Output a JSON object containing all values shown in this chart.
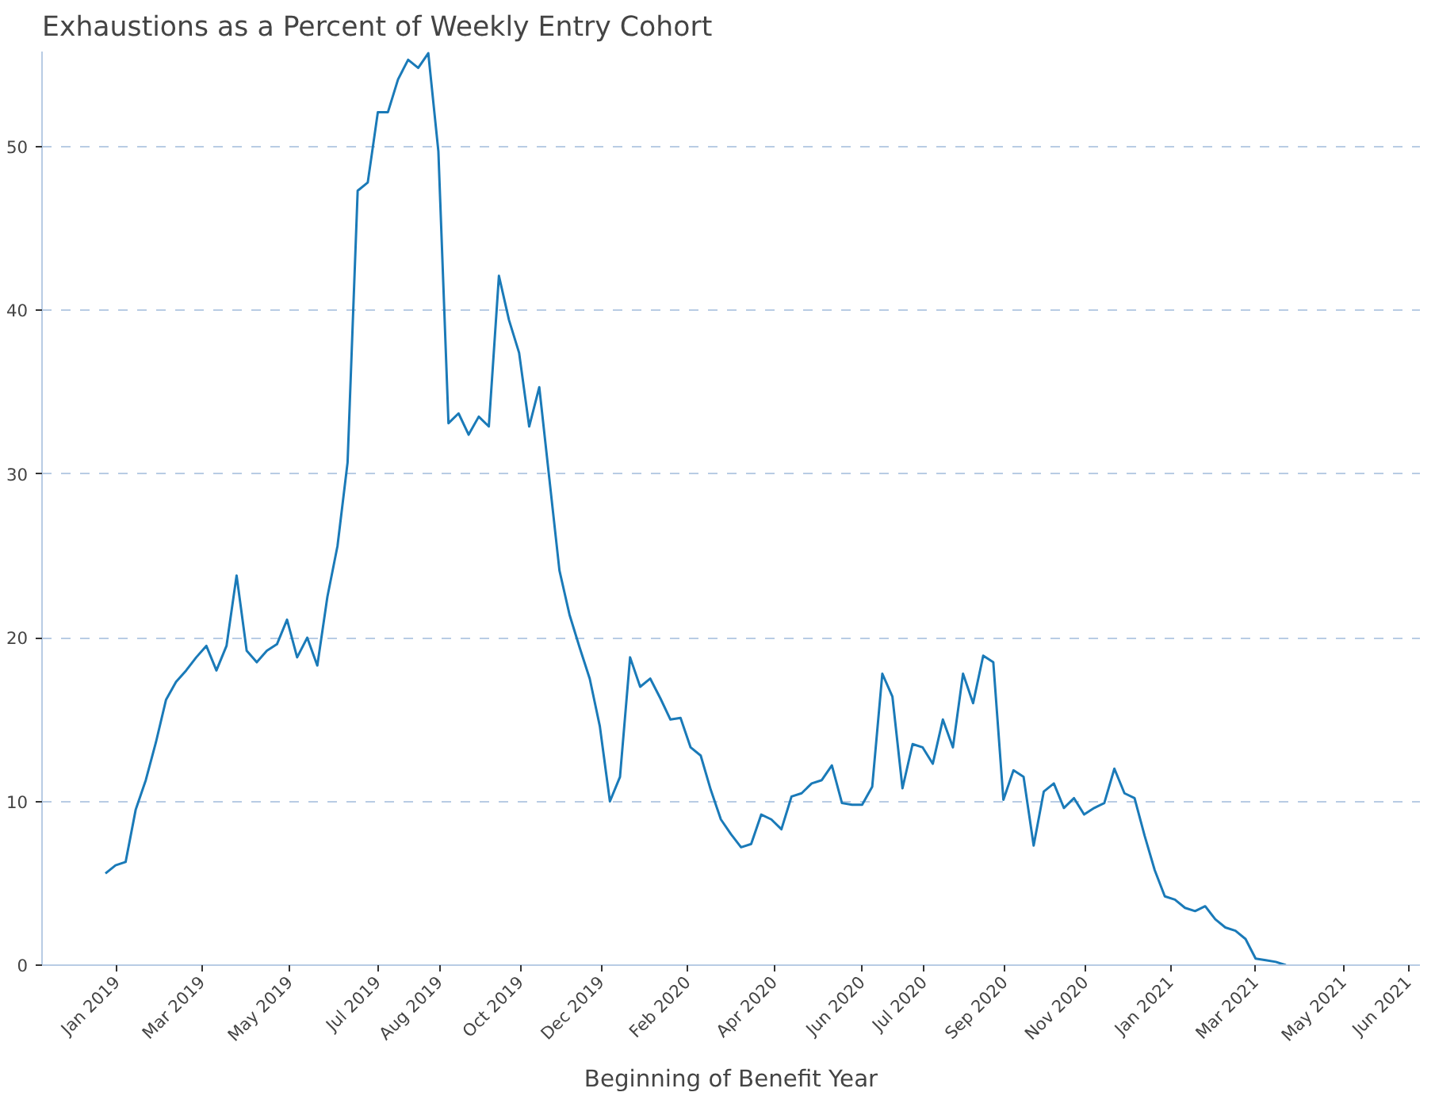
{
  "chart_data": {
    "type": "line",
    "title": "Exhaustions as a Percent of Weekly Entry Cohort",
    "xlabel": "Beginning of Benefit Year",
    "x": [
      "2018-12-24",
      "2018-12-31",
      "2019-01-07",
      "2019-01-14",
      "2019-01-21",
      "2019-01-28",
      "2019-02-04",
      "2019-02-11",
      "2019-02-18",
      "2019-02-25",
      "2019-03-04",
      "2019-03-11",
      "2019-03-18",
      "2019-03-25",
      "2019-04-01",
      "2019-04-08",
      "2019-04-15",
      "2019-04-22",
      "2019-04-29",
      "2019-05-06",
      "2019-05-13",
      "2019-05-20",
      "2019-05-27",
      "2019-06-03",
      "2019-06-10",
      "2019-06-17",
      "2019-06-24",
      "2019-07-01",
      "2019-07-08",
      "2019-07-15",
      "2019-07-22",
      "2019-07-29",
      "2019-08-05",
      "2019-08-12",
      "2019-08-19",
      "2019-08-26",
      "2019-09-02",
      "2019-09-09",
      "2019-09-16",
      "2019-09-23",
      "2019-09-30",
      "2019-10-07",
      "2019-10-14",
      "2019-10-21",
      "2019-10-28",
      "2019-11-04",
      "2019-11-11",
      "2019-11-18",
      "2019-11-25",
      "2019-12-02",
      "2019-12-09",
      "2019-12-16",
      "2019-12-23",
      "2019-12-30",
      "2020-01-06",
      "2020-01-13",
      "2020-01-20",
      "2020-01-27",
      "2020-02-03",
      "2020-02-10",
      "2020-02-17",
      "2020-02-24",
      "2020-03-02",
      "2020-03-09",
      "2020-03-16",
      "2020-03-23",
      "2020-03-30",
      "2020-04-06",
      "2020-04-13",
      "2020-04-20",
      "2020-04-27",
      "2020-05-04",
      "2020-05-11",
      "2020-05-18",
      "2020-05-25",
      "2020-06-01",
      "2020-06-08",
      "2020-06-15",
      "2020-06-22",
      "2020-06-29",
      "2020-07-06",
      "2020-07-13",
      "2020-07-20",
      "2020-07-27",
      "2020-08-03",
      "2020-08-10",
      "2020-08-17",
      "2020-08-24",
      "2020-08-31",
      "2020-09-07",
      "2020-09-14",
      "2020-09-21",
      "2020-09-28",
      "2020-10-05",
      "2020-10-12",
      "2020-10-19",
      "2020-10-26",
      "2020-11-02",
      "2020-11-09",
      "2020-11-16",
      "2020-11-23",
      "2020-11-30",
      "2020-12-07",
      "2020-12-14",
      "2020-12-21",
      "2020-12-28",
      "2021-01-04",
      "2021-01-11",
      "2021-01-18",
      "2021-01-25",
      "2021-02-01",
      "2021-02-08",
      "2021-02-15",
      "2021-02-22",
      "2021-03-01",
      "2021-03-08",
      "2021-03-15",
      "2021-03-22"
    ],
    "series": [
      {
        "color": "#1a7ab8",
        "values": [
          5.6,
          6.1,
          6.3,
          9.5,
          11.3,
          13.6,
          16.2,
          17.3,
          18.0,
          18.8,
          19.5,
          18.0,
          19.5,
          23.8,
          19.2,
          18.5,
          19.2,
          19.6,
          21.1,
          18.8,
          20.0,
          18.3,
          22.5,
          25.6,
          30.7,
          47.3,
          47.8,
          52.1,
          52.1,
          54.1,
          55.3,
          54.8,
          55.7,
          49.7,
          33.1,
          33.7,
          32.4,
          33.5,
          32.9,
          42.1,
          39.4,
          37.4,
          32.9,
          35.3,
          29.7,
          24.1,
          21.4,
          19.4,
          17.5,
          14.6,
          10.0,
          11.5,
          18.8,
          17.0,
          17.5,
          16.3,
          15.0,
          15.1,
          13.3,
          12.8,
          10.7,
          8.9,
          8.0,
          7.2,
          7.4,
          9.2,
          8.9,
          8.3,
          10.3,
          10.5,
          11.1,
          11.3,
          12.2,
          9.9,
          9.8,
          9.8,
          10.9,
          17.8,
          16.4,
          10.8,
          13.5,
          13.3,
          12.3,
          15.0,
          13.3,
          17.8,
          16.0,
          18.9,
          18.5,
          10.1,
          11.9,
          11.5,
          7.3,
          10.6,
          11.1,
          9.6,
          10.2,
          9.2,
          9.6,
          9.9,
          12.0,
          10.5,
          10.2,
          7.9,
          5.8,
          4.2,
          4.0,
          3.5,
          3.3,
          3.6,
          2.8,
          2.3,
          2.1,
          1.6,
          0.4,
          0.3,
          0.2,
          0.0
        ]
      }
    ],
    "xlim": [
      "2018-11-10",
      "2021-06-23"
    ],
    "xticks": [
      {
        "value": "2019-01-01",
        "label": "Jan 2019"
      },
      {
        "value": "2019-03-01",
        "label": "Mar 2019"
      },
      {
        "value": "2019-05-01",
        "label": "May 2019"
      },
      {
        "value": "2019-07-01",
        "label": "Jul 2019"
      },
      {
        "value": "2019-08-13",
        "label": "Aug 2019"
      },
      {
        "value": "2019-10-08",
        "label": "Oct 2019"
      },
      {
        "value": "2019-12-03",
        "label": "Dec 2019"
      },
      {
        "value": "2020-02-01",
        "label": "Feb 2020"
      },
      {
        "value": "2020-04-01",
        "label": "Apr 2020"
      },
      {
        "value": "2020-06-01",
        "label": "Jun 2020"
      },
      {
        "value": "2020-07-14",
        "label": "Jul 2020"
      },
      {
        "value": "2020-09-08",
        "label": "Sep 2020"
      },
      {
        "value": "2020-11-03",
        "label": "Nov 2020"
      },
      {
        "value": "2021-01-01",
        "label": "Jan 2021"
      },
      {
        "value": "2021-03-01",
        "label": "Mar 2021"
      },
      {
        "value": "2021-05-01",
        "label": "May 2021"
      },
      {
        "value": "2021-06-15",
        "label": "Jun 2021"
      }
    ],
    "ylim": [
      0,
      55.8
    ],
    "yticks": [
      0,
      10,
      20,
      30,
      40,
      50
    ],
    "grid": "y",
    "marker": "none",
    "line_style": "solid"
  }
}
